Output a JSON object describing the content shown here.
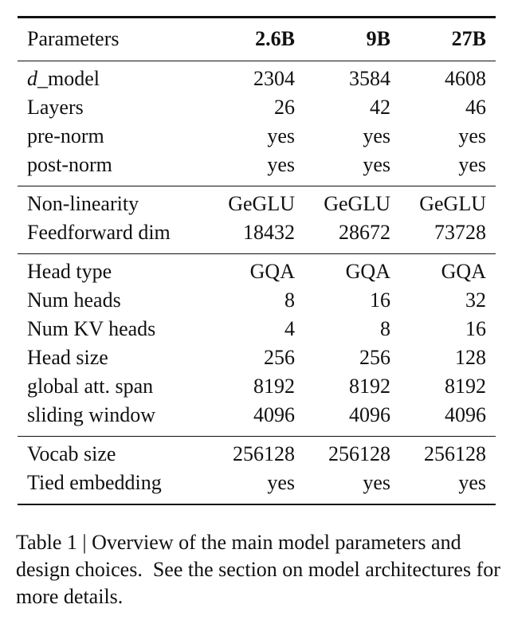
{
  "table": {
    "header": [
      "Parameters",
      "2.6B",
      "9B",
      "27B"
    ],
    "groups": [
      [
        [
          "d_model",
          "2304",
          "3584",
          "4608"
        ],
        [
          "Layers",
          "26",
          "42",
          "46"
        ],
        [
          "pre-norm",
          "yes",
          "yes",
          "yes"
        ],
        [
          "post-norm",
          "yes",
          "yes",
          "yes"
        ]
      ],
      [
        [
          "Non-linearity",
          "GeGLU",
          "GeGLU",
          "GeGLU"
        ],
        [
          "Feedforward dim",
          "18432",
          "28672",
          "73728"
        ]
      ],
      [
        [
          "Head type",
          "GQA",
          "GQA",
          "GQA"
        ],
        [
          "Num heads",
          "8",
          "16",
          "32"
        ],
        [
          "Num KV heads",
          "4",
          "8",
          "16"
        ],
        [
          "Head size",
          "256",
          "256",
          "128"
        ],
        [
          "global att. span",
          "8192",
          "8192",
          "8192"
        ],
        [
          "sliding window",
          "4096",
          "4096",
          "4096"
        ]
      ],
      [
        [
          "Vocab size",
          "256128",
          "256128",
          "256128"
        ],
        [
          "Tied embedding",
          "yes",
          "yes",
          "yes"
        ]
      ]
    ]
  },
  "caption": "Table 1 | Overview of the main model parameters and design choices.  See the section on model architectures for more details."
}
